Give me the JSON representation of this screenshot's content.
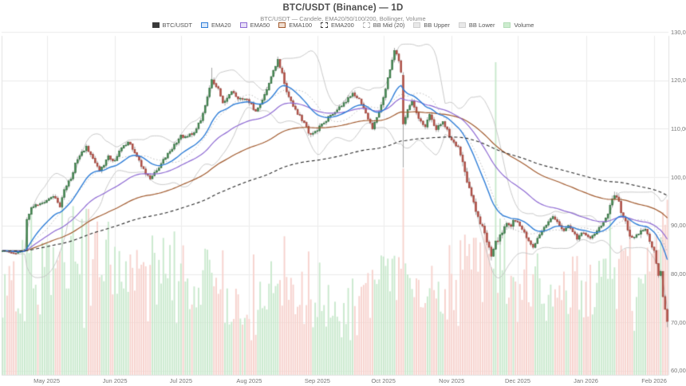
{
  "header": {
    "title": "BTC/USDT (Binance) — 1D",
    "subtitle": "BTC/USDT — Candele, EMA20/50/100/200, Bollinger, Volume"
  },
  "legend": {
    "items": [
      {
        "label": "BTC/USDT",
        "swatch_fill": "#3a3a3a",
        "swatch_border": "#3a3a3a",
        "swatch_style": "solid"
      },
      {
        "label": "EMA20",
        "swatch_fill": "#d9e8fa",
        "swatch_border": "#2f7ed8",
        "swatch_style": "solid"
      },
      {
        "label": "EMA50",
        "swatch_fill": "#e8e0f8",
        "swatch_border": "#8f6bd4",
        "swatch_style": "solid"
      },
      {
        "label": "EMA100",
        "swatch_fill": "#f0ded0",
        "swatch_border": "#a25b2f",
        "swatch_style": "solid"
      },
      {
        "label": "EMA200",
        "swatch_fill": "#ffffff",
        "swatch_border": "#3a3a3a",
        "swatch_style": "dashed"
      },
      {
        "label": "BB Mid (20)",
        "swatch_fill": "#ffffff",
        "swatch_border": "#b5b5b5",
        "swatch_style": "dashed"
      },
      {
        "label": "BB Upper",
        "swatch_fill": "#e9e9e9",
        "swatch_border": "#cfcfcf",
        "swatch_style": "solid"
      },
      {
        "label": "BB Lower",
        "swatch_fill": "#e9e9e9",
        "swatch_border": "#cfcfcf",
        "swatch_style": "solid"
      },
      {
        "label": "Volume",
        "swatch_fill": "#cdeccf",
        "swatch_border": "#b3dcb7",
        "swatch_style": "solid"
      }
    ]
  },
  "chart_data": {
    "type": "candlestick",
    "symbol": "BTC/USDT",
    "exchange": "Binance",
    "timeframe": "1D",
    "title": "BTC/USDT (Binance) — 1D",
    "grid": true,
    "legend_position": "top",
    "y_axis": {
      "side": "right",
      "range": [
        59500,
        130500
      ],
      "ticks": [
        {
          "label": "60,000",
          "value": 60000
        },
        {
          "label": "70,000",
          "value": 70000
        },
        {
          "label": "80,000",
          "value": 80000
        },
        {
          "label": "90,000",
          "value": 90000
        },
        {
          "label": "100,000",
          "value": 100000
        },
        {
          "label": "110,000",
          "value": 110000
        },
        {
          "label": "120,000",
          "value": 120000
        },
        {
          "label": "130,000",
          "value": 130000
        }
      ]
    },
    "x_axis": {
      "days_total": 303,
      "ticks": [
        {
          "label": "May 2025",
          "day": 20
        },
        {
          "label": "Jun 2025",
          "day": 51
        },
        {
          "label": "Jul 2025",
          "day": 81
        },
        {
          "label": "Aug 2025",
          "day": 112
        },
        {
          "label": "Sep 2025",
          "day": 143
        },
        {
          "label": "Oct 2025",
          "day": 173
        },
        {
          "label": "Nov 2025",
          "day": 204
        },
        {
          "label": "Dec 2025",
          "day": 234
        },
        {
          "label": "Jan 2026",
          "day": 265
        },
        {
          "label": "Feb 2026",
          "day": 296
        }
      ]
    },
    "overlays": {
      "ema_periods": [
        20,
        50,
        100,
        200
      ],
      "bollinger": {
        "period": 20,
        "k": 2
      }
    },
    "close_path": [
      [
        0,
        84800
      ],
      [
        6,
        84300
      ],
      [
        10,
        85100
      ],
      [
        11,
        91300
      ],
      [
        13,
        93600
      ],
      [
        17,
        94600
      ],
      [
        20,
        94900
      ],
      [
        23,
        96200
      ],
      [
        26,
        94100
      ],
      [
        28,
        97300
      ],
      [
        31,
        99800
      ],
      [
        33,
        102600
      ],
      [
        35,
        104300
      ],
      [
        38,
        106300
      ],
      [
        41,
        103600
      ],
      [
        44,
        101200
      ],
      [
        48,
        104200
      ],
      [
        51,
        103200
      ],
      [
        53,
        105400
      ],
      [
        57,
        107400
      ],
      [
        61,
        104200
      ],
      [
        64,
        101500
      ],
      [
        67,
        99600
      ],
      [
        70,
        101400
      ],
      [
        73,
        103500
      ],
      [
        77,
        106000
      ],
      [
        81,
        108500
      ],
      [
        84,
        108200
      ],
      [
        87,
        109500
      ],
      [
        90,
        111800
      ],
      [
        93,
        116800
      ],
      [
        95,
        119800
      ],
      [
        98,
        118200
      ],
      [
        100,
        115600
      ],
      [
        104,
        117400
      ],
      [
        108,
        116200
      ],
      [
        112,
        115600
      ],
      [
        115,
        113400
      ],
      [
        119,
        116800
      ],
      [
        122,
        120800
      ],
      [
        125,
        124200
      ],
      [
        127,
        121400
      ],
      [
        129,
        117600
      ],
      [
        132,
        114400
      ],
      [
        135,
        112600
      ],
      [
        138,
        110200
      ],
      [
        140,
        108600
      ],
      [
        143,
        109800
      ],
      [
        146,
        111200
      ],
      [
        149,
        112800
      ],
      [
        153,
        114400
      ],
      [
        156,
        115800
      ],
      [
        159,
        117200
      ],
      [
        162,
        116000
      ],
      [
        165,
        113400
      ],
      [
        168,
        109800
      ],
      [
        171,
        113800
      ],
      [
        173,
        116400
      ],
      [
        176,
        122400
      ],
      [
        178,
        126200
      ],
      [
        180,
        124000
      ],
      [
        181,
        121800
      ],
      [
        182,
        111000
      ],
      [
        184,
        113600
      ],
      [
        186,
        115400
      ],
      [
        189,
        112000
      ],
      [
        192,
        110400
      ],
      [
        194,
        112600
      ],
      [
        197,
        110000
      ],
      [
        200,
        111400
      ],
      [
        202,
        109600
      ],
      [
        204,
        107400
      ],
      [
        207,
        106000
      ],
      [
        209,
        103200
      ],
      [
        211,
        99400
      ],
      [
        213,
        96600
      ],
      [
        214,
        94600
      ],
      [
        216,
        91600
      ],
      [
        218,
        89600
      ],
      [
        220,
        86600
      ],
      [
        222,
        83600
      ],
      [
        224,
        86400
      ],
      [
        226,
        88000
      ],
      [
        229,
        90400
      ],
      [
        231,
        89600
      ],
      [
        232,
        91400
      ],
      [
        234,
        90600
      ],
      [
        237,
        88400
      ],
      [
        239,
        87000
      ],
      [
        241,
        85600
      ],
      [
        243,
        87400
      ],
      [
        246,
        89400
      ],
      [
        248,
        91000
      ],
      [
        250,
        92000
      ],
      [
        252,
        90600
      ],
      [
        255,
        89000
      ],
      [
        257,
        90000
      ],
      [
        259,
        88600
      ],
      [
        261,
        87400
      ],
      [
        263,
        88400
      ],
      [
        265,
        88000
      ],
      [
        267,
        87600
      ],
      [
        269,
        88400
      ],
      [
        271,
        89400
      ],
      [
        273,
        90400
      ],
      [
        275,
        92400
      ],
      [
        276,
        94000
      ],
      [
        278,
        96300
      ],
      [
        280,
        95000
      ],
      [
        281,
        92600
      ],
      [
        283,
        90600
      ],
      [
        284,
        89000
      ],
      [
        285,
        88000
      ],
      [
        287,
        87200
      ],
      [
        289,
        88600
      ],
      [
        291,
        89400
      ],
      [
        293,
        88400
      ],
      [
        294,
        87000
      ],
      [
        296,
        84600
      ],
      [
        297,
        82400
      ],
      [
        298,
        79600
      ],
      [
        299,
        80200
      ],
      [
        300,
        75400
      ],
      [
        301,
        72800
      ],
      [
        302,
        70200
      ]
    ],
    "special_candles": {
      "95": {
        "high": 122600
      },
      "125": {
        "high": 124900
      },
      "178": {
        "high": 126700
      },
      "182": {
        "open": 121000,
        "close": 111000,
        "low": 102000
      },
      "222": {
        "low": 82800
      },
      "302": {
        "low": 69000,
        "close": 70200
      }
    },
    "volatility_zones": [
      {
        "from": 0,
        "to": 10,
        "amp": 0.0015
      },
      {
        "from": 209,
        "to": 232,
        "amp": 0.005
      },
      {
        "from": 276,
        "to": 302,
        "amp": 0.005
      }
    ],
    "default_amp": 0.003,
    "volume_profile": [
      {
        "from": 0,
        "to": 84,
        "level": 1.25
      },
      {
        "from": 85,
        "to": 170,
        "level": 0.75
      },
      {
        "from": 171,
        "to": 203,
        "level": 0.7
      },
      {
        "from": 204,
        "to": 234,
        "level": 0.9
      },
      {
        "from": 235,
        "to": 264,
        "level": 0.85
      },
      {
        "from": 265,
        "to": 302,
        "level": 0.95
      }
    ],
    "volume_spikes": {
      "11": 0.4,
      "182": 0.66,
      "211": 0.38,
      "216": 0.33,
      "224": 1.0,
      "226": 0.5,
      "296": 0.4,
      "297": 0.45,
      "298": 0.4,
      "299": 0.44,
      "300": 0.52,
      "301": 0.48,
      "302": 0.56
    },
    "colors": {
      "up_body": "#4a8c57",
      "up_edge": "#2e6b3a",
      "down_body": "#b6544a",
      "down_edge": "#9c3f36",
      "wick": "#808080",
      "vol_up": "#c9e9cd",
      "vol_down": "#f7d2cd",
      "ema20": "#2f7ed8",
      "ema50": "#8f6bd4",
      "ema100": "#a25b2f",
      "ema200": "#2a2a2a",
      "bb_band": "#c4c4c4",
      "bb_mid": "#adadad",
      "grid": "#ececec",
      "spine": "#e2e2e2",
      "text": "#777777",
      "title": "#4d4d4d",
      "subtitle": "#8a8a8a"
    }
  }
}
